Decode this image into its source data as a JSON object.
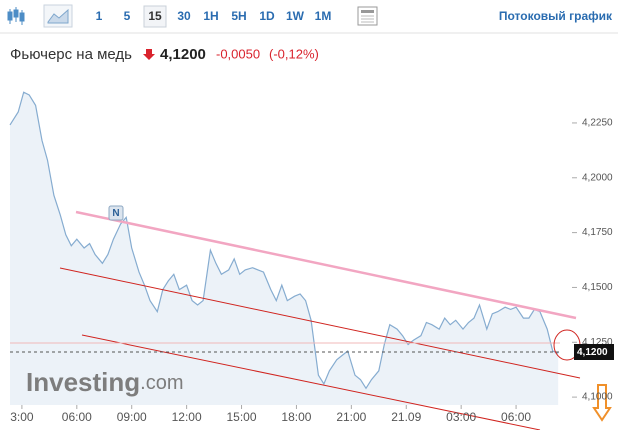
{
  "toolbar": {
    "intervals": [
      "1",
      "5",
      "15",
      "30",
      "1H",
      "5H",
      "1D",
      "1W",
      "1M"
    ],
    "selected": "15",
    "stream_link": "Потоковый график"
  },
  "header": {
    "name": "Фьючерс на медь",
    "price": "4,1200",
    "change": "-0,0050",
    "change_percent": "(-0,12%)"
  },
  "chart_data": {
    "type": "line",
    "color": "#86acd0",
    "fill": "#e6eef6",
    "watermark": {
      "main": "Investing",
      "suffix": ".com"
    },
    "x": [
      2.35,
      2.8,
      3.1,
      3.4,
      3.75,
      4.1,
      4.4,
      4.75,
      5.1,
      5.4,
      5.7,
      6.0,
      6.4,
      6.7,
      7.0,
      7.4,
      7.7,
      8.0,
      8.4,
      8.7,
      9.0,
      9.4,
      9.7,
      10.0,
      10.4,
      10.7,
      11.0,
      11.3,
      11.6,
      12.0,
      12.3,
      12.6,
      12.9,
      13.3,
      13.6,
      13.9,
      14.3,
      14.6,
      14.9,
      15.2,
      15.6,
      15.9,
      16.2,
      16.6,
      16.9,
      17.2,
      17.5,
      17.9,
      18.2,
      18.5,
      18.8,
      19.2,
      19.5,
      19.8,
      20.2,
      20.5,
      20.8,
      21.2,
      21.5,
      21.8,
      22.1,
      22.5,
      22.8,
      23.1,
      23.5,
      23.8,
      24.1,
      24.4,
      24.8,
      25.1,
      25.4,
      25.8,
      26.1,
      26.4,
      26.7,
      27.1,
      27.4,
      27.7,
      28.0,
      28.4,
      28.7,
      29.0,
      29.4,
      29.7,
      30.0,
      30.4,
      30.7,
      31.0,
      31.3,
      31.7,
      32.0,
      32.3
    ],
    "values": [
      4.2241,
      4.23,
      4.239,
      4.2378,
      4.233,
      4.217,
      4.208,
      4.192,
      4.183,
      4.174,
      4.169,
      4.172,
      4.168,
      4.17,
      4.165,
      4.161,
      4.165,
      4.172,
      4.179,
      4.182,
      4.168,
      4.157,
      4.151,
      4.144,
      4.139,
      4.149,
      4.153,
      4.156,
      4.149,
      4.151,
      4.144,
      4.142,
      4.144,
      4.167,
      4.161,
      4.156,
      4.158,
      4.163,
      4.156,
      4.158,
      4.159,
      4.158,
      4.157,
      4.149,
      4.144,
      4.151,
      4.144,
      4.146,
      4.147,
      4.144,
      4.135,
      4.11,
      4.106,
      4.112,
      4.117,
      4.119,
      4.121,
      4.11,
      4.108,
      4.104,
      4.108,
      4.112,
      4.124,
      4.133,
      4.131,
      4.128,
      4.124,
      4.126,
      4.128,
      4.134,
      4.133,
      4.131,
      4.136,
      4.133,
      4.135,
      4.131,
      4.134,
      4.136,
      4.142,
      4.131,
      4.138,
      4.139,
      4.141,
      4.14,
      4.141,
      4.136,
      4.136,
      4.14,
      4.139,
      4.131,
      4.121,
      4.12
    ],
    "xlim": [
      2.35,
      32.4
    ],
    "ylim": [
      4.0964,
      4.2423
    ],
    "xticks": [
      {
        "value": 3,
        "label": "3:00"
      },
      {
        "value": 6,
        "label": "06:00"
      },
      {
        "value": 9,
        "label": "09:00"
      },
      {
        "value": 12,
        "label": "12:00"
      },
      {
        "value": 15,
        "label": "15:00"
      },
      {
        "value": 18,
        "label": "18:00"
      },
      {
        "value": 21,
        "label": "21:00"
      },
      {
        "value": 24,
        "label": "21.09"
      },
      {
        "value": 27,
        "label": "03:00"
      },
      {
        "value": 30,
        "label": "06:00"
      }
    ],
    "yticks": [
      {
        "value": 4.225,
        "label": "4,2250"
      },
      {
        "value": 4.2,
        "label": "4,2000"
      },
      {
        "value": 4.175,
        "label": "4,1750"
      },
      {
        "value": 4.15,
        "label": "4,1500"
      },
      {
        "value": 4.125,
        "label": "4,1250"
      },
      {
        "value": 4.1,
        "label": "4,1000"
      }
    ]
  }
}
